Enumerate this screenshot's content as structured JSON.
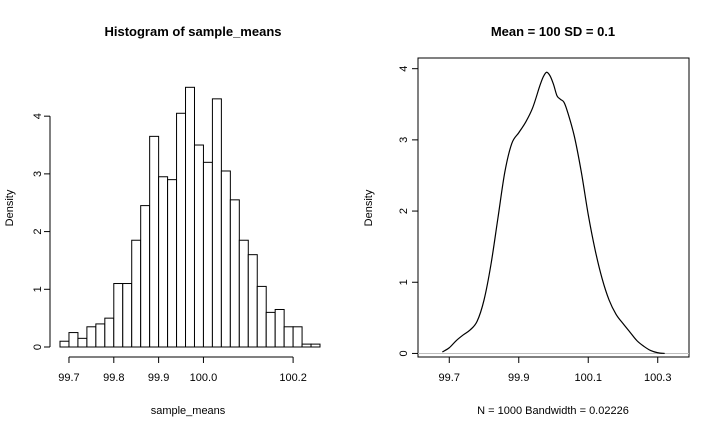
{
  "chart_data": [
    {
      "type": "histogram",
      "title": "Histogram of sample_means",
      "xlabel": "sample_means",
      "ylabel": "Density",
      "bin_width": 0.02,
      "bins_start": 99.68,
      "densities": [
        0.1,
        0.25,
        0.15,
        0.35,
        0.4,
        0.5,
        1.1,
        1.1,
        1.85,
        2.45,
        3.65,
        2.95,
        2.9,
        4.05,
        4.5,
        3.5,
        3.2,
        4.3,
        3.05,
        2.55,
        1.85,
        1.6,
        1.05,
        0.6,
        0.65,
        0.35,
        0.35,
        0.05,
        0.05
      ],
      "xlim": [
        99.68,
        100.26
      ],
      "ylim": [
        0,
        4.8
      ],
      "x_ticks": [
        99.7,
        99.8,
        99.9,
        100.0,
        100.2
      ],
      "x_tick_labels": [
        "99.7",
        "99.8",
        "99.9",
        "100.0",
        "100.2"
      ],
      "y_ticks": [
        0,
        1,
        2,
        3,
        4
      ],
      "y_tick_labels": [
        "0",
        "1",
        "2",
        "3",
        "4"
      ]
    },
    {
      "type": "line",
      "title": "Mean =  100 SD =  0.1",
      "xlabel": "N = 1000   Bandwidth = 0.02226",
      "ylabel": "Density",
      "x": [
        99.68,
        99.7,
        99.72,
        99.74,
        99.76,
        99.78,
        99.8,
        99.82,
        99.84,
        99.86,
        99.88,
        99.9,
        99.92,
        99.94,
        99.96,
        99.97,
        99.98,
        99.99,
        100.0,
        100.01,
        100.02,
        100.03,
        100.04,
        100.06,
        100.08,
        100.1,
        100.12,
        100.14,
        100.16,
        100.18,
        100.2,
        100.22,
        100.24,
        100.26,
        100.28,
        100.3,
        100.32
      ],
      "y": [
        0.02,
        0.08,
        0.18,
        0.26,
        0.33,
        0.45,
        0.75,
        1.25,
        1.9,
        2.55,
        2.95,
        3.1,
        3.25,
        3.45,
        3.75,
        3.88,
        3.95,
        3.9,
        3.78,
        3.62,
        3.57,
        3.53,
        3.4,
        3.05,
        2.55,
        1.95,
        1.45,
        1.05,
        0.75,
        0.55,
        0.42,
        0.3,
        0.18,
        0.1,
        0.04,
        0.01,
        0.0
      ],
      "xlim": [
        99.61,
        100.39
      ],
      "ylim": [
        -0.05,
        4.15
      ],
      "baseline": 0,
      "x_ticks": [
        99.7,
        99.9,
        100.1,
        100.3
      ],
      "x_tick_labels": [
        "99.7",
        "99.9",
        "100.1",
        "100.3"
      ],
      "y_ticks": [
        0,
        1,
        2,
        3,
        4
      ],
      "y_tick_labels": [
        "0",
        "1",
        "2",
        "3",
        "4"
      ]
    }
  ]
}
